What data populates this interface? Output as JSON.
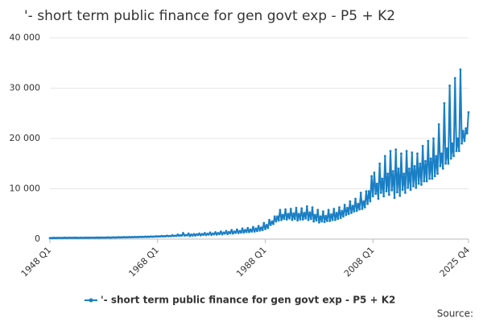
{
  "chart_data": {
    "type": "line",
    "title": "'- short term public finance for gen govt exp - P5 + K2",
    "source": "Source:",
    "categories": [
      "1948 Q1",
      null,
      null,
      null,
      null,
      null,
      null,
      null,
      null,
      null,
      null,
      null,
      null,
      null,
      null,
      null,
      null,
      null,
      null,
      null,
      null,
      null,
      null,
      null,
      null,
      null,
      null,
      null,
      null,
      null,
      null,
      null,
      null,
      null,
      null,
      null,
      null,
      null,
      null,
      null,
      null,
      null,
      null,
      null,
      null,
      null,
      null,
      null,
      null,
      null,
      null,
      null,
      null,
      null,
      null,
      null,
      null,
      null,
      null,
      null,
      null,
      null,
      null,
      null,
      null,
      null,
      null,
      null,
      null,
      null,
      null,
      null,
      null,
      null,
      null,
      null,
      null,
      null,
      null,
      null,
      "1968 Q1",
      null,
      null,
      null,
      null,
      null,
      null,
      null,
      null,
      null,
      null,
      null,
      null,
      null,
      null,
      null,
      null,
      null,
      null,
      null,
      null,
      null,
      null,
      null,
      null,
      null,
      null,
      null,
      null,
      null,
      null,
      null,
      null,
      null,
      null,
      null,
      null,
      null,
      null,
      null,
      null,
      null,
      null,
      null,
      null,
      null,
      null,
      null,
      null,
      null,
      null,
      null,
      null,
      null,
      null,
      null,
      null,
      null,
      null,
      null,
      null,
      null,
      null,
      null,
      null,
      null,
      null,
      null,
      null,
      null,
      null,
      null,
      null,
      null,
      null,
      null,
      null,
      null,
      null,
      null,
      "1988 Q1",
      null,
      null,
      null,
      null,
      null,
      null,
      null,
      null,
      null,
      null,
      null,
      null,
      null,
      null,
      null,
      null,
      null,
      null,
      null,
      null,
      null,
      null,
      null,
      null,
      null,
      null,
      null,
      null,
      null,
      null,
      null,
      null,
      null,
      null,
      null,
      null,
      null,
      null,
      null,
      null,
      null,
      null,
      null,
      null,
      null,
      null,
      null,
      null,
      null,
      null,
      null,
      null,
      null,
      null,
      null,
      null,
      null,
      null,
      null,
      null,
      null,
      null,
      null,
      null,
      null,
      null,
      null,
      null,
      null,
      null,
      null,
      null,
      null,
      null,
      null,
      null,
      null,
      null,
      null,
      "2008 Q1",
      null,
      null,
      null,
      null,
      null,
      null,
      null,
      null,
      null,
      null,
      null,
      null,
      null,
      null,
      null,
      null,
      null,
      null,
      null,
      null,
      null,
      null,
      null,
      null,
      null,
      null,
      null,
      null,
      null,
      null,
      null,
      null,
      null,
      null,
      null,
      null,
      null,
      null,
      null,
      null,
      null,
      null,
      null,
      null,
      null,
      null,
      null,
      null,
      null,
      null,
      null,
      null,
      null,
      null,
      null,
      null,
      null,
      null,
      null,
      null,
      null,
      null,
      null,
      null,
      null,
      null,
      null,
      null,
      null,
      null,
      "2025 Q4"
    ],
    "series": [
      {
        "name": "'- short term public finance for gen govt exp - P5 + K2",
        "color": "#1a7fc4",
        "values": [
          200,
          220,
          210,
          250,
          210,
          230,
          220,
          260,
          220,
          240,
          230,
          270,
          230,
          250,
          240,
          280,
          240,
          260,
          250,
          290,
          230,
          250,
          240,
          280,
          240,
          260,
          250,
          290,
          250,
          270,
          260,
          300,
          260,
          280,
          270,
          310,
          270,
          290,
          280,
          320,
          280,
          300,
          290,
          340,
          290,
          310,
          300,
          350,
          300,
          330,
          320,
          370,
          320,
          350,
          340,
          390,
          340,
          370,
          360,
          410,
          360,
          390,
          380,
          430,
          380,
          410,
          400,
          460,
          400,
          440,
          420,
          490,
          430,
          470,
          450,
          520,
          460,
          500,
          480,
          560,
          500,
          540,
          520,
          620,
          530,
          580,
          550,
          680,
          560,
          620,
          580,
          750,
          600,
          680,
          620,
          900,
          650,
          750,
          700,
          1200,
          700,
          800,
          750,
          1100,
          600,
          900,
          700,
          1000,
          700,
          950,
          800,
          1100,
          750,
          1000,
          850,
          1200,
          800,
          1050,
          900,
          1300,
          850,
          1100,
          950,
          1350,
          900,
          1200,
          1000,
          1500,
          950,
          1300,
          1100,
          1600,
          1000,
          1400,
          1150,
          1800,
          1100,
          1500,
          1250,
          1900,
          1200,
          1600,
          1300,
          2100,
          1300,
          1800,
          1400,
          2200,
          1400,
          1900,
          1500,
          2400,
          1500,
          2100,
          1600,
          2600,
          1700,
          2300,
          1800,
          3200,
          2000,
          2800,
          2200,
          3800,
          2800,
          3500,
          3000,
          4500,
          3500,
          4500,
          3700,
          5800,
          3800,
          4800,
          4000,
          5900,
          3900,
          5000,
          4100,
          6000,
          3800,
          5100,
          4000,
          6200,
          3700,
          5000,
          3900,
          6100,
          3900,
          5200,
          4100,
          6500,
          3800,
          5300,
          4000,
          6300,
          3500,
          4800,
          3700,
          5800,
          3300,
          4500,
          3500,
          5500,
          3400,
          4600,
          3600,
          5800,
          3600,
          4900,
          3800,
          6000,
          3800,
          5200,
          4000,
          6300,
          4200,
          5600,
          4500,
          6800,
          4800,
          6200,
          5000,
          7500,
          5200,
          6600,
          5500,
          8000,
          5600,
          7000,
          5900,
          9200,
          6000,
          7500,
          6300,
          9500,
          7000,
          9500,
          7500,
          12500,
          8500,
          13200,
          9000,
          11000,
          8000,
          15000,
          9200,
          12000,
          8500,
          16500,
          9500,
          13000,
          8800,
          17500,
          9700,
          13500,
          8200,
          17800,
          9300,
          14000,
          8600,
          17000,
          9800,
          13000,
          9200,
          17500,
          10200,
          14000,
          9800,
          17200,
          10500,
          14500,
          10200,
          17000,
          11000,
          15000,
          10800,
          18500,
          11500,
          15500,
          11500,
          19500,
          12000,
          16000,
          12000,
          20000,
          12500,
          16500,
          13000,
          22800,
          14500,
          17000,
          14000,
          27000,
          15000,
          18000,
          15000,
          30500,
          16000,
          19000,
          16500,
          32000,
          17500,
          20000,
          17500,
          33700,
          19000,
          21500,
          19500,
          22000,
          21000,
          25200
        ]
      }
    ],
    "ylim": [
      0,
      40000
    ],
    "yticks": [
      0,
      {
        "value": 10000,
        "label": "10 000"
      },
      {
        "value": 20000,
        "label": "20 000"
      },
      {
        "value": 30000,
        "label": "30 000"
      },
      {
        "value": 40000,
        "label": "40 000"
      }
    ],
    "grid": true,
    "legend": "bottom"
  }
}
